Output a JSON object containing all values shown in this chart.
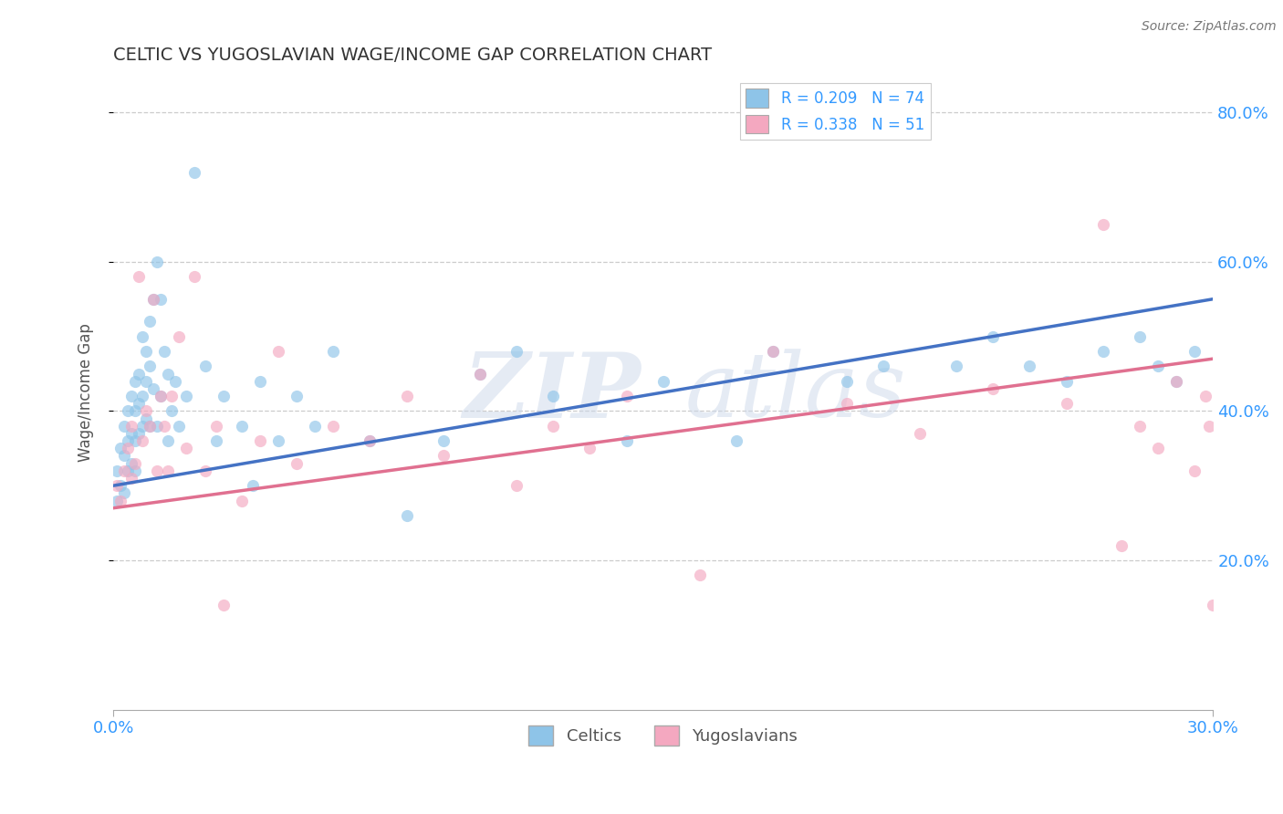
{
  "title": "CELTIC VS YUGOSLAVIAN WAGE/INCOME GAP CORRELATION CHART",
  "source": "Source: ZipAtlas.com",
  "ylabel": "Wage/Income Gap",
  "xlim": [
    0.0,
    0.3
  ],
  "ylim": [
    0.0,
    0.85
  ],
  "yticks": [
    0.2,
    0.4,
    0.6,
    0.8
  ],
  "ytick_labels": [
    "20.0%",
    "40.0%",
    "60.0%",
    "80.0%"
  ],
  "xticks": [
    0.0,
    0.3
  ],
  "xtick_labels": [
    "0.0%",
    "30.0%"
  ],
  "legend_r1": "R = 0.209   N = 74",
  "legend_r2": "R = 0.338   N = 51",
  "celtic_color": "#8ec4e8",
  "yugoslav_color": "#f4a8c0",
  "celtic_line_color": "#4472c4",
  "yugoslav_line_color": "#e07090",
  "background_color": "#ffffff",
  "title_color": "#333333",
  "axis_tick_color": "#3399ff",
  "watermark_color": "#ccd8ea",
  "celtic_scatter_x": [
    0.001,
    0.001,
    0.002,
    0.002,
    0.003,
    0.003,
    0.003,
    0.004,
    0.004,
    0.004,
    0.005,
    0.005,
    0.005,
    0.006,
    0.006,
    0.006,
    0.006,
    0.007,
    0.007,
    0.007,
    0.008,
    0.008,
    0.008,
    0.009,
    0.009,
    0.009,
    0.01,
    0.01,
    0.01,
    0.011,
    0.011,
    0.012,
    0.012,
    0.013,
    0.013,
    0.014,
    0.015,
    0.015,
    0.016,
    0.017,
    0.018,
    0.02,
    0.022,
    0.025,
    0.028,
    0.03,
    0.035,
    0.038,
    0.04,
    0.045,
    0.05,
    0.055,
    0.06,
    0.07,
    0.08,
    0.09,
    0.1,
    0.11,
    0.12,
    0.14,
    0.15,
    0.17,
    0.18,
    0.2,
    0.21,
    0.23,
    0.24,
    0.25,
    0.26,
    0.27,
    0.28,
    0.285,
    0.29,
    0.295
  ],
  "celtic_scatter_y": [
    0.32,
    0.28,
    0.35,
    0.3,
    0.38,
    0.34,
    0.29,
    0.4,
    0.36,
    0.32,
    0.42,
    0.37,
    0.33,
    0.44,
    0.4,
    0.36,
    0.32,
    0.45,
    0.41,
    0.37,
    0.5,
    0.42,
    0.38,
    0.48,
    0.44,
    0.39,
    0.52,
    0.46,
    0.38,
    0.55,
    0.43,
    0.6,
    0.38,
    0.55,
    0.42,
    0.48,
    0.45,
    0.36,
    0.4,
    0.44,
    0.38,
    0.42,
    0.72,
    0.46,
    0.36,
    0.42,
    0.38,
    0.3,
    0.44,
    0.36,
    0.42,
    0.38,
    0.48,
    0.36,
    0.26,
    0.36,
    0.45,
    0.48,
    0.42,
    0.36,
    0.44,
    0.36,
    0.48,
    0.44,
    0.46,
    0.46,
    0.5,
    0.46,
    0.44,
    0.48,
    0.5,
    0.46,
    0.44,
    0.48
  ],
  "yugoslav_scatter_x": [
    0.001,
    0.002,
    0.003,
    0.004,
    0.005,
    0.005,
    0.006,
    0.007,
    0.008,
    0.009,
    0.01,
    0.011,
    0.012,
    0.013,
    0.014,
    0.015,
    0.016,
    0.018,
    0.02,
    0.022,
    0.025,
    0.028,
    0.03,
    0.035,
    0.04,
    0.045,
    0.05,
    0.06,
    0.07,
    0.08,
    0.09,
    0.1,
    0.11,
    0.12,
    0.13,
    0.14,
    0.16,
    0.18,
    0.2,
    0.22,
    0.24,
    0.26,
    0.27,
    0.275,
    0.28,
    0.285,
    0.29,
    0.295,
    0.298,
    0.299,
    0.3
  ],
  "yugoslav_scatter_y": [
    0.3,
    0.28,
    0.32,
    0.35,
    0.31,
    0.38,
    0.33,
    0.58,
    0.36,
    0.4,
    0.38,
    0.55,
    0.32,
    0.42,
    0.38,
    0.32,
    0.42,
    0.5,
    0.35,
    0.58,
    0.32,
    0.38,
    0.14,
    0.28,
    0.36,
    0.48,
    0.33,
    0.38,
    0.36,
    0.42,
    0.34,
    0.45,
    0.3,
    0.38,
    0.35,
    0.42,
    0.18,
    0.48,
    0.41,
    0.37,
    0.43,
    0.41,
    0.65,
    0.22,
    0.38,
    0.35,
    0.44,
    0.32,
    0.42,
    0.38,
    0.14
  ],
  "celtic_line_x0": 0.0,
  "celtic_line_x1": 0.3,
  "celtic_line_y0": 0.3,
  "celtic_line_y1": 0.55,
  "yugoslav_line_x0": 0.0,
  "yugoslav_line_x1": 0.3,
  "yugoslav_line_y0": 0.27,
  "yugoslav_line_y1": 0.47
}
